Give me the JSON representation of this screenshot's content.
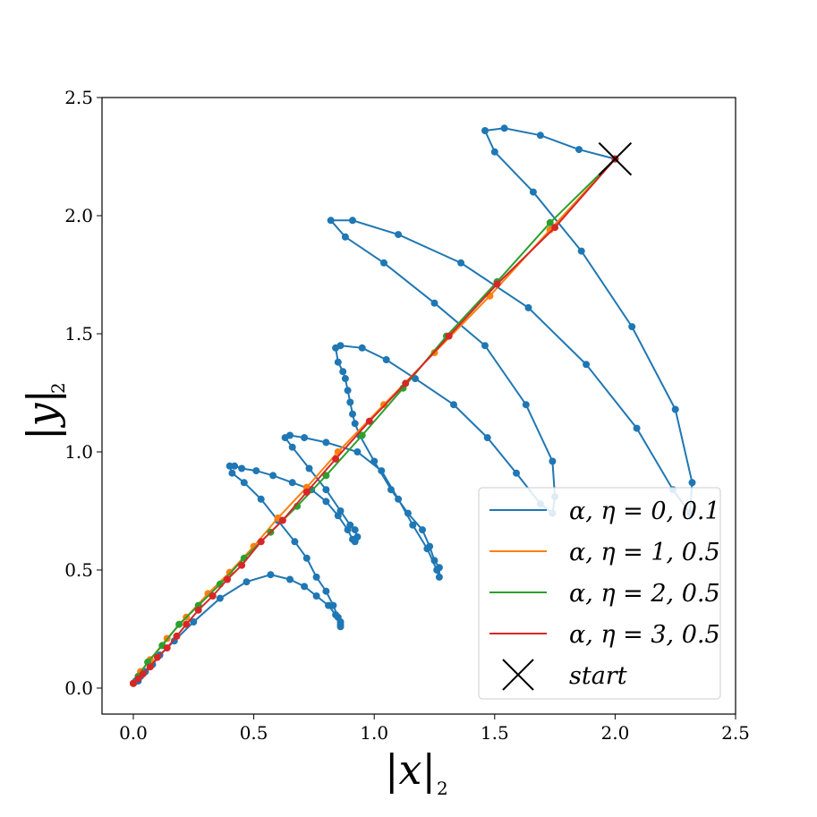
{
  "chart_data": {
    "type": "line",
    "title": "",
    "xlabel": "|x|",
    "xlabel_subscript": "2",
    "ylabel": "|y|",
    "ylabel_subscript": "2",
    "xlim": [
      -0.13,
      2.5
    ],
    "ylim": [
      -0.11,
      2.5
    ],
    "xticks": [
      0.0,
      0.5,
      1.0,
      1.5,
      2.0,
      2.5
    ],
    "yticks": [
      0.0,
      0.5,
      1.0,
      1.5,
      2.0,
      2.5
    ],
    "xtick_labels": [
      "0.0",
      "0.5",
      "1.0",
      "1.5",
      "2.0",
      "2.5"
    ],
    "ytick_labels": [
      "0.0",
      "0.5",
      "1.0",
      "1.5",
      "2.0",
      "2.5"
    ],
    "grid": false,
    "legend_position": "lower-right",
    "start": {
      "label": "start",
      "x": 2.0,
      "y": 2.24
    },
    "series": [
      {
        "name": "α, η = 0, 0.1",
        "color": "#1f77b4",
        "points": [
          [
            2.0,
            2.24
          ],
          [
            1.85,
            2.28
          ],
          [
            1.69,
            2.34
          ],
          [
            1.54,
            2.37
          ],
          [
            1.46,
            2.36
          ],
          [
            1.5,
            2.27
          ],
          [
            1.66,
            2.1
          ],
          [
            1.86,
            1.85
          ],
          [
            2.07,
            1.53
          ],
          [
            2.25,
            1.18
          ],
          [
            2.32,
            0.87
          ],
          [
            2.31,
            0.74
          ],
          [
            2.24,
            0.84
          ],
          [
            2.09,
            1.1
          ],
          [
            1.88,
            1.37
          ],
          [
            1.64,
            1.61
          ],
          [
            1.36,
            1.8
          ],
          [
            1.1,
            1.92
          ],
          [
            0.91,
            1.98
          ],
          [
            0.82,
            1.98
          ],
          [
            0.88,
            1.91
          ],
          [
            1.04,
            1.8
          ],
          [
            1.25,
            1.63
          ],
          [
            1.46,
            1.45
          ],
          [
            1.63,
            1.2
          ],
          [
            1.74,
            0.96
          ],
          [
            1.75,
            0.81
          ],
          [
            1.74,
            0.74
          ],
          [
            1.69,
            0.78
          ],
          [
            1.59,
            0.91
          ],
          [
            1.47,
            1.06
          ],
          [
            1.33,
            1.2
          ],
          [
            1.17,
            1.31
          ],
          [
            1.05,
            1.39
          ],
          [
            0.95,
            1.44
          ],
          [
            0.86,
            1.45
          ],
          [
            0.84,
            1.44
          ],
          [
            0.85,
            1.38
          ],
          [
            0.87,
            1.34
          ],
          [
            0.88,
            1.31
          ],
          [
            0.89,
            1.26
          ],
          [
            0.9,
            1.21
          ],
          [
            0.91,
            1.16
          ],
          [
            0.92,
            1.12
          ],
          [
            0.94,
            1.07
          ],
          [
            1.0,
            0.96
          ],
          [
            1.07,
            0.84
          ],
          [
            1.14,
            0.74
          ],
          [
            1.2,
            0.67
          ],
          [
            1.23,
            0.6
          ],
          [
            1.25,
            0.54
          ],
          [
            1.27,
            0.51
          ],
          [
            1.27,
            0.47
          ],
          [
            1.26,
            0.5
          ],
          [
            1.22,
            0.59
          ],
          [
            1.16,
            0.69
          ],
          [
            1.1,
            0.8
          ],
          [
            1.03,
            0.92
          ],
          [
            0.93,
            1.0
          ],
          [
            0.8,
            1.04
          ],
          [
            0.71,
            1.06
          ],
          [
            0.65,
            1.07
          ],
          [
            0.63,
            1.06
          ],
          [
            0.66,
            1.02
          ],
          [
            0.73,
            0.93
          ],
          [
            0.8,
            0.84
          ],
          [
            0.86,
            0.75
          ],
          [
            0.9,
            0.69
          ],
          [
            0.92,
            0.67
          ],
          [
            0.93,
            0.64
          ],
          [
            0.92,
            0.62
          ],
          [
            0.91,
            0.63
          ],
          [
            0.89,
            0.67
          ],
          [
            0.85,
            0.73
          ],
          [
            0.8,
            0.79
          ],
          [
            0.74,
            0.84
          ],
          [
            0.66,
            0.87
          ],
          [
            0.58,
            0.9
          ],
          [
            0.51,
            0.92
          ],
          [
            0.45,
            0.93
          ],
          [
            0.42,
            0.94
          ],
          [
            0.4,
            0.94
          ],
          [
            0.41,
            0.91
          ],
          [
            0.46,
            0.87
          ],
          [
            0.53,
            0.8
          ],
          [
            0.6,
            0.71
          ],
          [
            0.67,
            0.62
          ],
          [
            0.72,
            0.55
          ],
          [
            0.76,
            0.47
          ],
          [
            0.8,
            0.41
          ],
          [
            0.83,
            0.35
          ],
          [
            0.85,
            0.3
          ],
          [
            0.86,
            0.27
          ],
          [
            0.86,
            0.26
          ],
          [
            0.86,
            0.28
          ],
          [
            0.84,
            0.31
          ],
          [
            0.81,
            0.35
          ],
          [
            0.76,
            0.39
          ],
          [
            0.71,
            0.43
          ],
          [
            0.65,
            0.46
          ],
          [
            0.57,
            0.48
          ],
          [
            0.47,
            0.45
          ],
          [
            0.36,
            0.38
          ],
          [
            0.25,
            0.28
          ],
          [
            0.17,
            0.2
          ],
          [
            0.11,
            0.14
          ],
          [
            0.08,
            0.1
          ],
          [
            0.05,
            0.07
          ],
          [
            0.03,
            0.05
          ],
          [
            0.02,
            0.03
          ],
          [
            0.01,
            0.03
          ],
          [
            0.0,
            0.02
          ]
        ]
      },
      {
        "name": "α, η = 1, 0.5",
        "color": "#ff7f0e",
        "points": [
          [
            2.0,
            2.24
          ],
          [
            1.73,
            1.94
          ],
          [
            1.48,
            1.66
          ],
          [
            1.25,
            1.42
          ],
          [
            1.04,
            1.2
          ],
          [
            0.85,
            1.0
          ],
          [
            0.72,
            0.85
          ],
          [
            0.6,
            0.72
          ],
          [
            0.5,
            0.6
          ],
          [
            0.4,
            0.49
          ],
          [
            0.31,
            0.4
          ],
          [
            0.22,
            0.3
          ],
          [
            0.14,
            0.21
          ],
          [
            0.07,
            0.12
          ],
          [
            0.03,
            0.07
          ],
          [
            0.0,
            0.02
          ]
        ]
      },
      {
        "name": "α, η = 2, 0.5",
        "color": "#2ca02c",
        "points": [
          [
            2.0,
            2.24
          ],
          [
            1.73,
            1.97
          ],
          [
            1.51,
            1.72
          ],
          [
            1.3,
            1.49
          ],
          [
            1.12,
            1.27
          ],
          [
            0.95,
            1.07
          ],
          [
            0.8,
            0.9
          ],
          [
            0.68,
            0.77
          ],
          [
            0.57,
            0.66
          ],
          [
            0.46,
            0.55
          ],
          [
            0.36,
            0.44
          ],
          [
            0.27,
            0.35
          ],
          [
            0.19,
            0.27
          ],
          [
            0.12,
            0.18
          ],
          [
            0.06,
            0.11
          ],
          [
            0.02,
            0.05
          ],
          [
            0.0,
            0.02
          ]
        ]
      },
      {
        "name": "α, η = 3, 0.5",
        "color": "#d62728",
        "points": [
          [
            2.0,
            2.24
          ],
          [
            1.75,
            1.95
          ],
          [
            1.51,
            1.71
          ],
          [
            1.31,
            1.49
          ],
          [
            1.13,
            1.29
          ],
          [
            0.98,
            1.13
          ],
          [
            0.84,
            0.97
          ],
          [
            0.72,
            0.83
          ],
          [
            0.62,
            0.71
          ],
          [
            0.53,
            0.62
          ],
          [
            0.45,
            0.52
          ],
          [
            0.39,
            0.46
          ],
          [
            0.33,
            0.39
          ],
          [
            0.27,
            0.33
          ],
          [
            0.22,
            0.27
          ],
          [
            0.18,
            0.22
          ],
          [
            0.14,
            0.17
          ],
          [
            0.1,
            0.13
          ],
          [
            0.07,
            0.09
          ],
          [
            0.04,
            0.06
          ],
          [
            0.02,
            0.04
          ],
          [
            0.0,
            0.02
          ]
        ]
      }
    ]
  }
}
